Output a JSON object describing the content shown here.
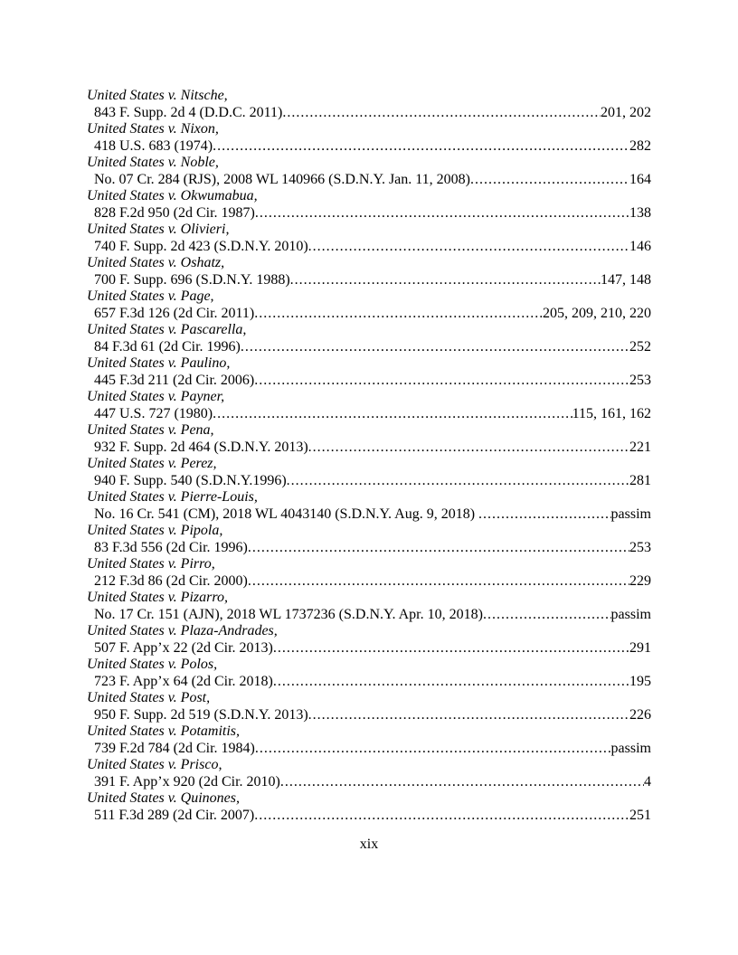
{
  "page": {
    "footer_page_number": "xix"
  },
  "entries": [
    {
      "case": "United States v. Nitsche,",
      "citation": "843 F. Supp. 2d 4 (D.D.C. 2011)",
      "pages": "201, 202"
    },
    {
      "case": "United States v. Nixon,",
      "citation": "418 U.S. 683 (1974)",
      "pages": "282"
    },
    {
      "case": "United States v. Noble,",
      "citation": "No. 07 Cr. 284 (RJS), 2008 WL 140966 (S.D.N.Y. Jan. 11, 2008)",
      "pages": "164"
    },
    {
      "case": "United States v. Okwumabua,",
      "citation": "828 F.2d 950 (2d Cir. 1987)",
      "pages": "138"
    },
    {
      "case": "United States v. Olivieri,",
      "citation": "740 F. Supp. 2d 423 (S.D.N.Y. 2010)",
      "pages": "146"
    },
    {
      "case": "United States v. Oshatz,",
      "citation": "700 F. Supp. 696 (S.D.N.Y. 1988)",
      "pages": "147, 148"
    },
    {
      "case": "United States v. Page,",
      "citation": "657 F.3d 126 (2d Cir. 2011)",
      "pages": "205, 209, 210, 220"
    },
    {
      "case": "United States v. Pascarella,",
      "citation": "84 F.3d 61 (2d Cir. 1996)",
      "pages": "252"
    },
    {
      "case": "United States v. Paulino,",
      "citation": "445 F.3d 211 (2d Cir. 2006)",
      "pages": "253"
    },
    {
      "case": "United States v. Payner,",
      "citation": "447 U.S. 727 (1980)",
      "pages": "115, 161, 162"
    },
    {
      "case": "United States v. Pena,",
      "citation": "932 F. Supp. 2d 464 (S.D.N.Y. 2013)",
      "pages": "221"
    },
    {
      "case": "United States v. Perez,",
      "citation": "940 F. Supp. 540 (S.D.N.Y.1996)",
      "pages": "281"
    },
    {
      "case": "United States v. Pierre-Louis,",
      "citation": "No. 16 Cr. 541 (CM), 2018 WL 4043140 (S.D.N.Y. Aug. 9, 2018) ",
      "pages": "passim"
    },
    {
      "case": "United States v. Pipola,",
      "citation": "83 F.3d 556 (2d Cir. 1996)",
      "pages": "253"
    },
    {
      "case": "United States v. Pirro,",
      "citation": "212 F.3d 86 (2d Cir. 2000)",
      "pages": "229"
    },
    {
      "case": "United States v. Pizarro,",
      "citation": "No. 17 Cr. 151 (AJN), 2018 WL 1737236 (S.D.N.Y. Apr. 10, 2018)",
      "pages": "passim"
    },
    {
      "case": "United States v. Plaza-Andrades,",
      "citation": "507 F. App’x 22 (2d Cir. 2013)",
      "pages": "291"
    },
    {
      "case": "United States v. Polos,",
      "citation": "723 F. App’x 64 (2d Cir. 2018)",
      "pages": "195"
    },
    {
      "case": "United States v. Post,",
      "citation": "950 F. Supp. 2d 519 (S.D.N.Y. 2013)",
      "pages": "226"
    },
    {
      "case": "United States v. Potamitis,",
      "citation": "739 F.2d 784 (2d Cir. 1984)",
      "pages": "passim"
    },
    {
      "case": "United States v. Prisco,",
      "citation": "391 F. App’x 920 (2d Cir. 2010)",
      "pages": "4"
    },
    {
      "case": "United States v. Quinones,",
      "citation": "511 F.3d 289 (2d Cir. 2007)",
      "pages": "251"
    }
  ]
}
